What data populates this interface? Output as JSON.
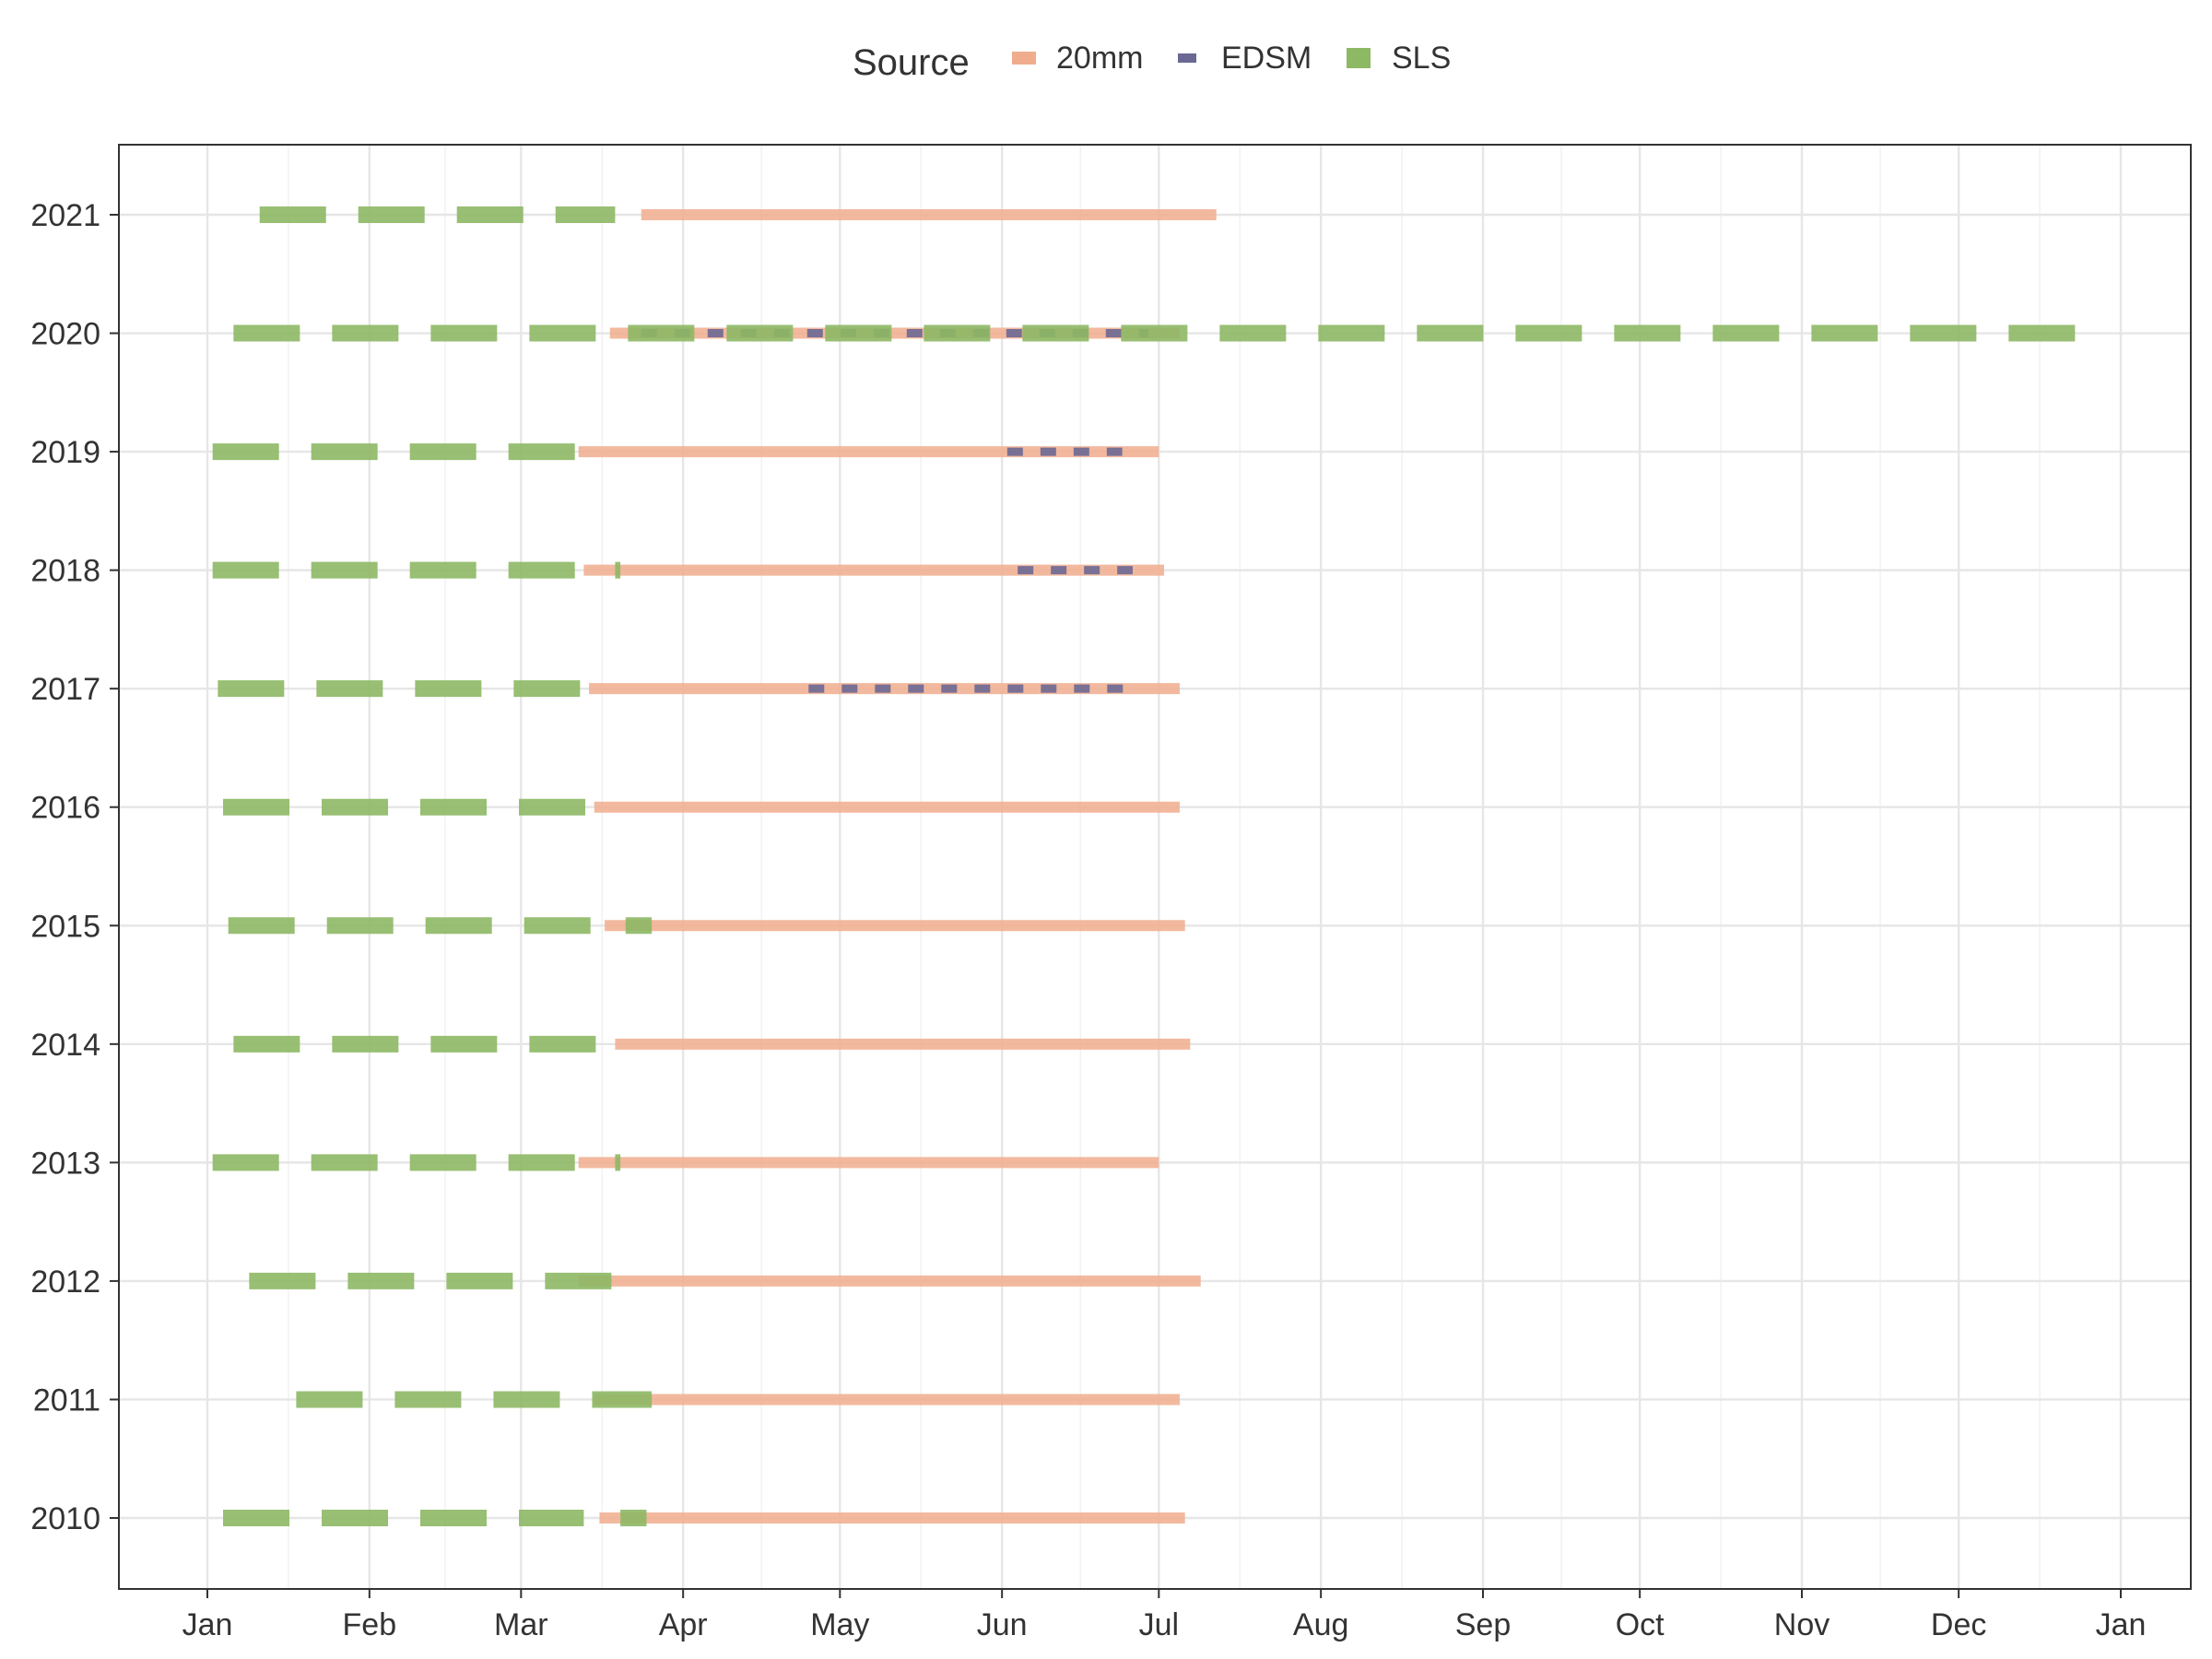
{
  "chart_data": {
    "type": "timeline",
    "year": 2020,
    "xlabel": "",
    "ylabel": "",
    "x_ticks": [
      "Jan",
      "Feb",
      "Mar",
      "Apr",
      "May",
      "Jun",
      "Jul",
      "Aug",
      "Sep",
      "Oct",
      "Nov",
      "Dec",
      "Jan"
    ],
    "y_categories": [
      "2021",
      "2020",
      "2019",
      "2018",
      "2017",
      "2016",
      "2015",
      "2014",
      "2013",
      "2012",
      "2011",
      "2010"
    ],
    "grid": true,
    "legend": {
      "title": "Source",
      "position": "top",
      "entries": [
        {
          "label": "20mm",
          "color": "#F0AD8E",
          "linetype": "solid"
        },
        {
          "label": "EDSM",
          "color": "#6B6894",
          "linetype": "dotted"
        },
        {
          "label": "SLS",
          "color": "#8DB864",
          "linetype": "dashed"
        }
      ]
    },
    "series": [
      {
        "name": "20mm",
        "color": "#F0AD8E",
        "dash": "solid",
        "opacity": 0.85,
        "segments": [
          {
            "year": "2021",
            "start": "2020-03-24",
            "end": "2020-07-12"
          },
          {
            "year": "2020",
            "start": "2020-03-18",
            "end": "2020-07-05"
          },
          {
            "year": "2019",
            "start": "2020-03-12",
            "end": "2020-07-01"
          },
          {
            "year": "2018",
            "start": "2020-03-13",
            "end": "2020-07-02"
          },
          {
            "year": "2017",
            "start": "2020-03-14",
            "end": "2020-07-05"
          },
          {
            "year": "2016",
            "start": "2020-03-15",
            "end": "2020-07-05"
          },
          {
            "year": "2015",
            "start": "2020-03-17",
            "end": "2020-07-06"
          },
          {
            "year": "2014",
            "start": "2020-03-19",
            "end": "2020-07-07"
          },
          {
            "year": "2013",
            "start": "2020-03-12",
            "end": "2020-07-01"
          },
          {
            "year": "2012",
            "start": "2020-03-12",
            "end": "2020-07-09"
          },
          {
            "year": "2011",
            "start": "2020-03-15",
            "end": "2020-07-05"
          },
          {
            "year": "2010",
            "start": "2020-03-16",
            "end": "2020-07-06"
          }
        ]
      },
      {
        "name": "EDSM",
        "color": "#6B6894",
        "dash": "dotted",
        "opacity": 0.9,
        "segments": [
          {
            "year": "2020",
            "start": "2020-03-24",
            "end": "2020-06-29"
          },
          {
            "year": "2019",
            "start": "2020-06-02",
            "end": "2020-06-24"
          },
          {
            "year": "2018",
            "start": "2020-06-04",
            "end": "2020-06-26"
          },
          {
            "year": "2017",
            "start": "2020-04-25",
            "end": "2020-06-26"
          }
        ]
      },
      {
        "name": "SLS",
        "color": "#8DB864",
        "dash": "dashed",
        "opacity": 0.9,
        "segments": [
          {
            "year": "2021",
            "start": "2020-01-11",
            "end": "2020-03-19"
          },
          {
            "year": "2020",
            "start": "2020-01-06",
            "end": "2020-12-24"
          },
          {
            "year": "2019",
            "start": "2020-01-02",
            "end": "2020-03-12"
          },
          {
            "year": "2018",
            "start": "2020-01-02",
            "end": "2020-03-12"
          },
          {
            "year": "2018",
            "start": "2020-03-19",
            "end": "2020-03-20"
          },
          {
            "year": "2017",
            "start": "2020-01-03",
            "end": "2020-03-13"
          },
          {
            "year": "2016",
            "start": "2020-01-04",
            "end": "2020-03-14"
          },
          {
            "year": "2015",
            "start": "2020-01-05",
            "end": "2020-03-15"
          },
          {
            "year": "2015",
            "start": "2020-03-21",
            "end": "2020-03-26"
          },
          {
            "year": "2014",
            "start": "2020-01-06",
            "end": "2020-03-16"
          },
          {
            "year": "2013",
            "start": "2020-01-02",
            "end": "2020-03-12"
          },
          {
            "year": "2013",
            "start": "2020-03-19",
            "end": "2020-03-20"
          },
          {
            "year": "2012",
            "start": "2020-01-09",
            "end": "2020-03-19"
          },
          {
            "year": "2011",
            "start": "2020-01-18",
            "end": "2020-03-26"
          },
          {
            "year": "2010",
            "start": "2020-01-04",
            "end": "2020-03-13"
          },
          {
            "year": "2010",
            "start": "2020-03-20",
            "end": "2020-03-25"
          }
        ]
      }
    ]
  }
}
